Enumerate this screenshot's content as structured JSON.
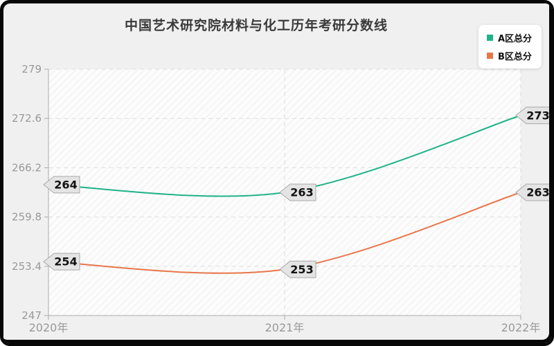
{
  "chart_data": {
    "type": "line",
    "title": "中国艺术研究院材料与化工历年考研分数线",
    "categories": [
      "2020年",
      "2021年",
      "2022年"
    ],
    "series": [
      {
        "name": "A区总分",
        "color": "#1fb288",
        "values": [
          264,
          263,
          273
        ]
      },
      {
        "name": "B区总分",
        "color": "#e8764a",
        "values": [
          254,
          253,
          263
        ]
      }
    ],
    "ylim": [
      247,
      279
    ],
    "yticks": [
      247,
      253.4,
      259.8,
      266.2,
      272.6,
      279
    ],
    "smooth": true,
    "data_labels": true,
    "grid": "horizontal and vertical dashed gridlines",
    "legend_position": "top-right",
    "colors": {
      "axis": "#aaaaaa",
      "tick_label": "#999999",
      "gridline": "#dddddd",
      "badge_fill": "#e4e4e4",
      "badge_border": "#a8a8a8",
      "badge_text": "#111111",
      "title_text": "#3a3a3a",
      "page_background": "#f0f0f0",
      "legend_background": "#ffffff"
    }
  }
}
